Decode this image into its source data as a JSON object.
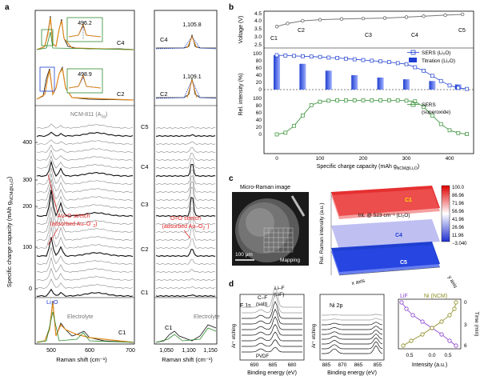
{
  "panels": {
    "a": "a",
    "b": "b",
    "c": "c",
    "d": "d"
  },
  "a": {
    "ylabel": "Specific charge capacity (mAh g",
    "ylabel_sub": "NCM@Li₂O",
    "ylabel_end": ")",
    "yticks": [
      "0",
      "100",
      "200",
      "300",
      "400"
    ],
    "xlabel": "Raman shift (cm⁻¹)",
    "xticks_left": [
      "500",
      "600",
      "700"
    ],
    "xticks_right": [
      "1,050",
      "1,100",
      "1,150"
    ],
    "inset_c4_value": "496.2",
    "inset_c2_value": "498.9",
    "right_c4_value": "1,105.8",
    "right_c2_value": "1,109.1",
    "ncm_label": "NCM-811 (A",
    "ncm_sub": "1g",
    "ncm_end": ")",
    "cycle_labels": [
      "C5",
      "C4",
      "C3",
      "C2",
      "C1"
    ],
    "annot_auo_1": "Au=O stretch",
    "annot_auo_2": "(adsorbed Au–O",
    "annot_auo_sup": "−",
    "annot_auo_sub": "2",
    "annot_oo_1": "O=O stretch",
    "annot_oo_2": "(adsorbed Au–O",
    "annot_oo_sub": "2",
    "annot_oo_sup": "−",
    "li2o_label": "Li₂O",
    "electrolyte_left": "Electrolyte",
    "electrolyte_right": "Electrolyte",
    "c4_top": "C4",
    "c2_top": "C2",
    "c4_right": "C4",
    "c2_right": "C2",
    "c1_bottom_left": "C1",
    "c1_bottom_right": "C1"
  },
  "b": {
    "voltage_label": "Voltage (V)",
    "voltage_ticks": [
      "2.5",
      "3.0",
      "3.5",
      "4.0",
      "4.5"
    ],
    "voltage_points": [
      "C1",
      "C2",
      "C3",
      "C4",
      "C5"
    ],
    "rel_label": "Rel. intensity (%)",
    "rel_ticks_top": [
      "0",
      "20",
      "40",
      "60",
      "80",
      "100"
    ],
    "rel_ticks_bottom": [
      "0",
      "20",
      "40",
      "60",
      "80",
      "100"
    ],
    "xticks": [
      "0",
      "100",
      "200",
      "300",
      "400"
    ],
    "xlabel": "Specific charge capacity (mAh g",
    "xlabel_sub": "NCM@Li₂O",
    "xlabel_end": ")",
    "legend_sers_li2o": "SERS (Li₂O)",
    "legend_titration": "Titration (Li₂O)",
    "legend_sers_sup_1": "SERS",
    "legend_sers_sup_2": "(superoxide)"
  },
  "c": {
    "title": "Micro-Raman image",
    "scale": "100 μm",
    "mapping": "Mapping",
    "colorbar": [
      "100.0",
      "86.96",
      "71.96",
      "56.96",
      "41.96",
      "26.96",
      "11.96",
      "−3.040"
    ],
    "zlabel": "Rel. Raman intensity (a.u.)",
    "int_label": "Int. @ 523 cm⁻¹ (Li₂O)",
    "layer_labels": [
      "C1",
      "C4",
      "C5"
    ],
    "x_axis": "x axis",
    "y_axis": "y axis",
    "xaxis_ticks": [
      "0",
      "5",
      "10",
      "15",
      "20",
      "25",
      "30",
      "35"
    ],
    "yaxis_ticks": [
      "0",
      "5",
      "10",
      "15",
      "20",
      "25",
      "30",
      "35"
    ]
  },
  "d": {
    "f1s": "F 1s",
    "cf_label_1": "C–F",
    "cf_label_2": "(salt)",
    "lif_label_1": "Li–F",
    "lif_label_2": "(LiF)",
    "pvdf": "PVDF",
    "etching": "Ar⁺ etching",
    "ni2p": "Ni 2p",
    "xlabel_binding": "Binding energy (eV)",
    "f_xticks": [
      "690",
      "685",
      "680"
    ],
    "ni_xticks": [
      "885",
      "870",
      "865",
      "855"
    ],
    "lif_legend": "LiF",
    "ni_legend": "Ni (NCM)",
    "time_label": "Time (min)",
    "time_ticks": [
      "0",
      "3",
      "6"
    ],
    "intensity_label": "Intensity (a.u.)",
    "intensity_ticks": [
      "0.5",
      "0.0"
    ]
  },
  "colors": {
    "blue": "#1f3fd0",
    "green": "#2e8b2e",
    "red": "#e02020",
    "orange": "#e08a1e",
    "purple": "#8a3fd0",
    "olive": "#8a8a1e"
  },
  "chart_data": [
    {
      "type": "line",
      "title": "",
      "xlabel": "Specific charge capacity (mAh g NCM@Li₂O)",
      "ylabel": "Voltage (V)",
      "x": [
        0,
        25,
        60,
        100,
        150,
        200,
        250,
        300,
        340,
        390,
        430
      ],
      "series": [
        {
          "values": [
            3.7,
            3.9,
            4.08,
            4.15,
            4.2,
            4.23,
            4.26,
            4.32,
            4.38,
            4.45,
            4.5
          ]
        }
      ],
      "ylim": [
        2.5,
        4.5
      ]
    },
    {
      "type": "line",
      "xlabel": "Specific charge capacity (mAh g NCM@Li₂O)",
      "ylabel": "Rel. intensity (%)",
      "x": [
        0,
        20,
        40,
        60,
        80,
        100,
        120,
        140,
        160,
        180,
        200,
        220,
        240,
        260,
        280,
        300,
        320,
        340,
        360,
        380,
        400,
        420,
        440
      ],
      "series": [
        {
          "name": "SERS (Li₂O)",
          "values": [
            100,
            99,
            98,
            97,
            96,
            95,
            93,
            92,
            90,
            88,
            86,
            84,
            82,
            80,
            77,
            74,
            65,
            55,
            40,
            25,
            12,
            5,
            2
          ]
        },
        {
          "name": "SERS (superoxide)",
          "values": [
            0,
            5,
            25,
            55,
            85,
            95,
            98,
            99,
            99,
            99,
            99,
            99,
            99,
            99,
            99,
            98,
            96,
            80,
            55,
            30,
            12,
            4,
            1
          ]
        }
      ],
      "ylim": [
        0,
        100
      ]
    },
    {
      "type": "bar",
      "series": [
        {
          "name": "Titration (Li₂O)",
          "values": [
            100,
            75,
            55,
            42,
            35,
            30,
            25,
            15
          ]
        }
      ],
      "x": [
        0,
        60,
        120,
        180,
        240,
        300,
        360,
        420
      ]
    }
  ]
}
